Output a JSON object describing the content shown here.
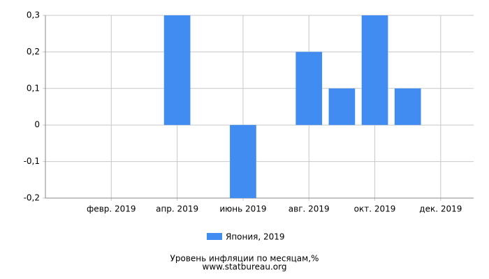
{
  "chart_data": {
    "type": "bar",
    "title": "Уровень инфляции по месяцам,%",
    "subtitle": "www.statbureau.org",
    "categories": [
      null,
      "февр. 2019",
      null,
      "апр. 2019",
      null,
      "июнь 2019",
      null,
      "авг. 2019",
      null,
      "окт. 2019",
      null,
      "дек. 2019"
    ],
    "series": [
      {
        "name": "Япония, 2019",
        "color": "#418cf0",
        "values": [
          0,
          0,
          0,
          0.3,
          0,
          -0.2,
          0,
          0.2,
          0.1,
          0.3,
          0.1,
          0
        ]
      }
    ],
    "ylim": [
      -0.2,
      0.3
    ],
    "yticks": [
      {
        "value": -0.2,
        "label": "-0,2"
      },
      {
        "value": -0.1,
        "label": "-0,1"
      },
      0,
      {
        "value": 0.1,
        "label": "0,1"
      },
      {
        "value": 0.2,
        "label": "0,2"
      },
      {
        "value": 0.3,
        "label": "0,3"
      }
    ],
    "grid": true
  }
}
